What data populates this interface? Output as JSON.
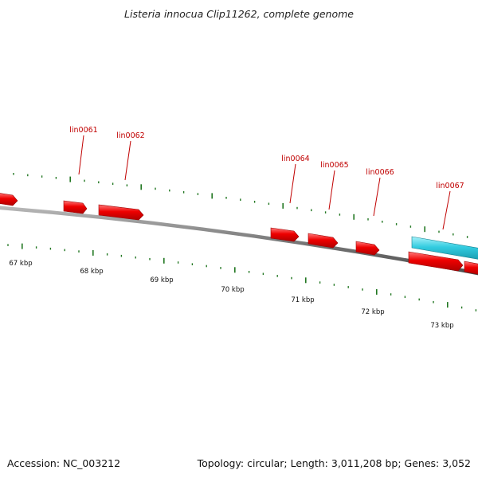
{
  "title": "Listeria innocua Clip11262, complete genome",
  "footer": {
    "accession": "Accession: NC_003212",
    "summary": "Topology: circular; Length: 3,011,208 bp; Genes: 3,052"
  },
  "colors": {
    "gene_forward": "#ee0000",
    "gene_highlight": "#33cce0",
    "tick": "#227722",
    "backbone": "#7a7a7a",
    "label": "#c00000"
  },
  "gene_labels": [
    "lin0061",
    "lin0062",
    "lin0064",
    "lin0065",
    "lin0066",
    "lin0067"
  ],
  "kbp_labels": [
    "67 kbp",
    "68 kbp",
    "69 kbp",
    "70 kbp",
    "71 kbp",
    "72 kbp",
    "73 kbp"
  ]
}
